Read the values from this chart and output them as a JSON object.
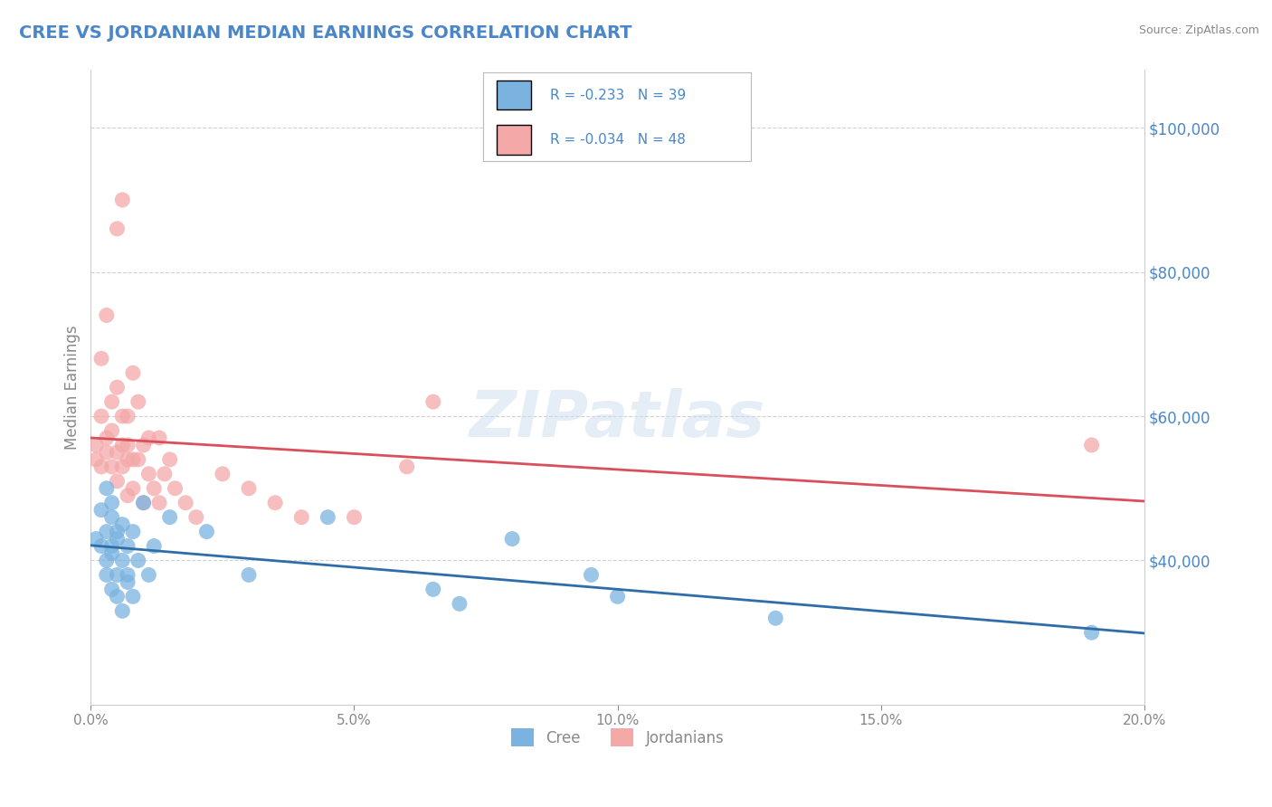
{
  "title": "CREE VS JORDANIAN MEDIAN EARNINGS CORRELATION CHART",
  "source": "Source: ZipAtlas.com",
  "ylabel": "Median Earnings",
  "xlim": [
    0.0,
    0.2
  ],
  "ylim": [
    20000,
    108000
  ],
  "yticks": [
    40000,
    60000,
    80000,
    100000
  ],
  "ytick_labels": [
    "$40,000",
    "$60,000",
    "$80,000",
    "$100,000"
  ],
  "xticks": [
    0.0,
    0.05,
    0.1,
    0.15,
    0.2
  ],
  "xtick_labels": [
    "0.0%",
    "5.0%",
    "10.0%",
    "15.0%",
    "20.0%"
  ],
  "cree_color": "#7ab3e0",
  "jordanian_color": "#f4a8a8",
  "cree_line_color": "#2e6da8",
  "jordanian_line_color": "#d94f5c",
  "cree_R": -0.233,
  "cree_N": 39,
  "jordanian_R": -0.034,
  "jordanian_N": 48,
  "background_color": "#ffffff",
  "grid_color": "#cccccc",
  "title_color": "#4a86c8",
  "tick_color": "#888888",
  "legend_text_color": "#4a86c8",
  "watermark": "ZIPatlas",
  "cree_x": [
    0.001,
    0.002,
    0.002,
    0.003,
    0.003,
    0.003,
    0.003,
    0.004,
    0.004,
    0.004,
    0.004,
    0.004,
    0.005,
    0.005,
    0.005,
    0.005,
    0.006,
    0.006,
    0.006,
    0.007,
    0.007,
    0.007,
    0.008,
    0.008,
    0.009,
    0.01,
    0.011,
    0.012,
    0.015,
    0.022,
    0.03,
    0.045,
    0.065,
    0.07,
    0.08,
    0.095,
    0.1,
    0.13,
    0.19
  ],
  "cree_y": [
    43000,
    47000,
    42000,
    50000,
    44000,
    40000,
    38000,
    46000,
    42000,
    36000,
    48000,
    41000,
    44000,
    38000,
    43000,
    35000,
    40000,
    45000,
    33000,
    37000,
    42000,
    38000,
    35000,
    44000,
    40000,
    48000,
    38000,
    42000,
    46000,
    44000,
    38000,
    46000,
    36000,
    34000,
    43000,
    38000,
    35000,
    32000,
    30000
  ],
  "jordanian_x": [
    0.001,
    0.001,
    0.002,
    0.002,
    0.002,
    0.003,
    0.003,
    0.003,
    0.004,
    0.004,
    0.004,
    0.005,
    0.005,
    0.005,
    0.005,
    0.006,
    0.006,
    0.006,
    0.006,
    0.007,
    0.007,
    0.007,
    0.007,
    0.008,
    0.008,
    0.008,
    0.009,
    0.009,
    0.01,
    0.01,
    0.011,
    0.011,
    0.012,
    0.013,
    0.013,
    0.014,
    0.015,
    0.016,
    0.018,
    0.02,
    0.025,
    0.03,
    0.035,
    0.04,
    0.05,
    0.06,
    0.065,
    0.19
  ],
  "jordanian_y": [
    54000,
    56000,
    60000,
    53000,
    68000,
    55000,
    74000,
    57000,
    62000,
    53000,
    58000,
    86000,
    55000,
    64000,
    51000,
    90000,
    53000,
    60000,
    56000,
    54000,
    60000,
    49000,
    56000,
    54000,
    66000,
    50000,
    54000,
    62000,
    56000,
    48000,
    57000,
    52000,
    50000,
    57000,
    48000,
    52000,
    54000,
    50000,
    48000,
    46000,
    52000,
    50000,
    48000,
    46000,
    46000,
    53000,
    62000,
    56000
  ]
}
